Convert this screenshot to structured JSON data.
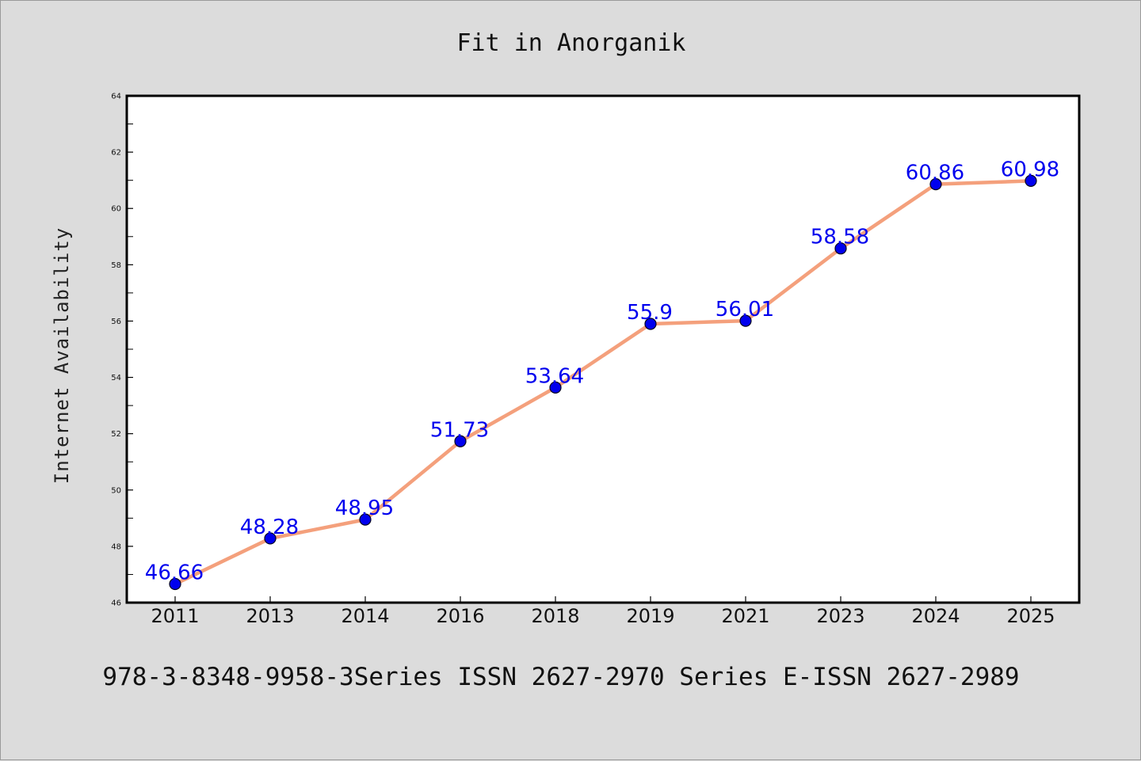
{
  "chart_data": {
    "type": "line",
    "title": "Fit in Anorganik",
    "xlabel": "",
    "ylabel": "Internet Availability",
    "categories": [
      "2011",
      "2013",
      "2014",
      "2016",
      "2018",
      "2019",
      "2021",
      "2023",
      "2024",
      "2025"
    ],
    "values": [
      46.66,
      48.28,
      48.95,
      51.73,
      53.64,
      55.9,
      56.01,
      58.58,
      60.86,
      60.98
    ],
    "data_labels": [
      "46.66",
      "48.28",
      "48.95",
      "51.73",
      "53.64",
      "55.9",
      "56.01",
      "58.58",
      "60.86",
      "60.98"
    ],
    "ylim": [
      46,
      64
    ],
    "yticks": [
      46,
      48,
      50,
      52,
      54,
      56,
      58,
      60,
      62,
      64
    ],
    "grid": false,
    "legend": "none",
    "colors": {
      "line": "#f4a07c",
      "marker": "#0000ee",
      "label": "#0000ee",
      "background": "#dcdcdc",
      "plot_bg": "#ffffff"
    }
  },
  "footer": "978-3-8348-9958-3Series ISSN 2627-2970 Series E-ISSN 2627-2989"
}
